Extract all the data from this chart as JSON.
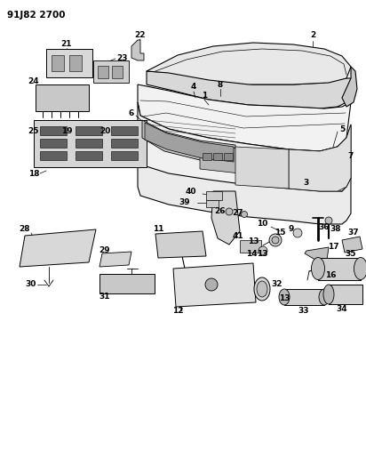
{
  "title": "91J82 2700",
  "bg_color": "#ffffff",
  "line_color": "#000000",
  "fig_width": 4.12,
  "fig_height": 5.33,
  "dpi": 100
}
